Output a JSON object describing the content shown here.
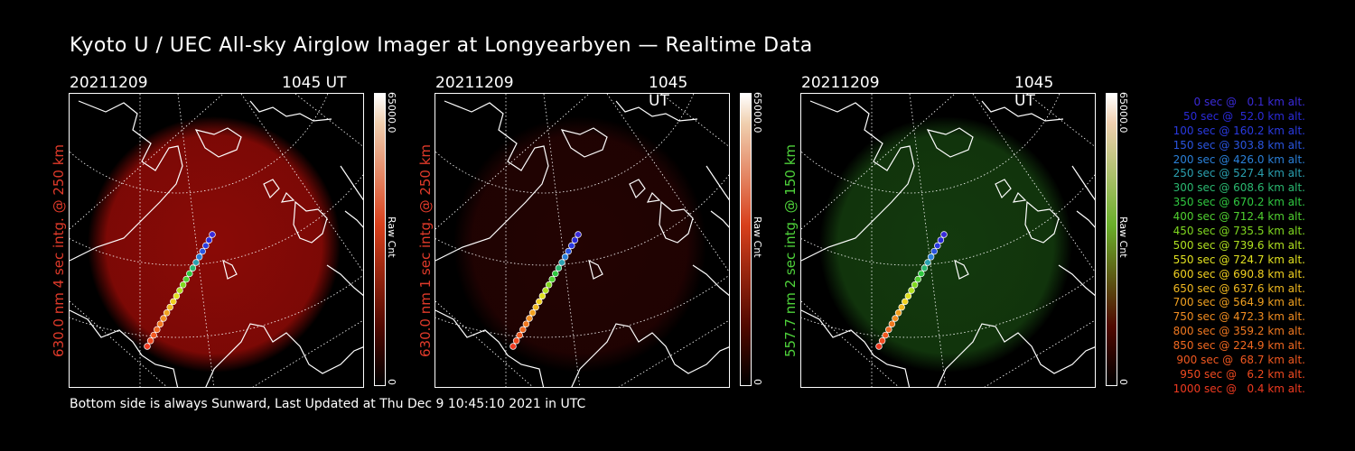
{
  "header": {
    "title": "Kyoto U / UEC All-sky Airglow Imager at Longyearbyen — Realtime Data"
  },
  "panels": [
    {
      "date": "20211209",
      "time": "1045 UT",
      "ylabel": "630.0 nm 4 sec intg. @ 250 km",
      "ylabel_color": "#e03a2a",
      "colorbar_max": "65000.0",
      "colorbar_min": "0",
      "colorbar_label": "Raw Cnt",
      "glow_color": "#8a0a06",
      "glow_strength": 1.0,
      "bar_top": "#ffffff",
      "bar_bottom": "#000000",
      "bar_mid": "#d8401c"
    },
    {
      "date": "20211209",
      "time": "1045 UT",
      "ylabel": "630.0 nm 1 sec intg. @ 250 km",
      "ylabel_color": "#e03a2a",
      "colorbar_max": "65000.0",
      "colorbar_min": "0",
      "colorbar_label": "Raw Cnt",
      "glow_color": "#3a0504",
      "glow_strength": 0.6,
      "bar_top": "#ffffff",
      "bar_bottom": "#000000",
      "bar_mid": "#d8401c"
    },
    {
      "date": "20211209",
      "time": "1045 UT",
      "ylabel": "557.7 nm 2 sec intg. @ 150 km",
      "ylabel_color": "#4ed13a",
      "colorbar_max": "65000.0",
      "colorbar_min": "0",
      "colorbar_label": "Raw Cnt",
      "glow_color": "#15400f",
      "glow_strength": 0.9,
      "bar_top": "#ffffff",
      "bar_bottom": "#000000",
      "bar_mid": "#6ab02a"
    }
  ],
  "trajectory_legend": [
    {
      "text": "0 sec @   0.1 km alt.",
      "color": "#3a2ad8"
    },
    {
      "text": "50 sec @  52.0 km alt.",
      "color": "#2a2ad8"
    },
    {
      "text": "100 sec @ 160.2 km alt.",
      "color": "#2a3ae0"
    },
    {
      "text": "150 sec @ 303.8 km alt.",
      "color": "#2a55e0"
    },
    {
      "text": "200 sec @ 426.0 km alt.",
      "color": "#2a80d8"
    },
    {
      "text": "250 sec @ 527.4 km alt.",
      "color": "#2aa0b0"
    },
    {
      "text": "300 sec @ 608.6 km alt.",
      "color": "#2ab870"
    },
    {
      "text": "350 sec @ 670.2 km alt.",
      "color": "#30c840"
    },
    {
      "text": "400 sec @ 712.4 km alt.",
      "color": "#50d030"
    },
    {
      "text": "450 sec @ 735.5 km alt.",
      "color": "#80d820"
    },
    {
      "text": "500 sec @ 739.6 km alt.",
      "color": "#b0e020"
    },
    {
      "text": "550 sec @ 724.7 km alt.",
      "color": "#e0e020"
    },
    {
      "text": "600 sec @ 690.8 km alt.",
      "color": "#f0d020"
    },
    {
      "text": "650 sec @ 637.6 km alt.",
      "color": "#f0b820"
    },
    {
      "text": "700 sec @ 564.9 km alt.",
      "color": "#f0a020"
    },
    {
      "text": "750 sec @ 472.3 km alt.",
      "color": "#f08c20"
    },
    {
      "text": "800 sec @ 359.2 km alt.",
      "color": "#f07820"
    },
    {
      "text": "850 sec @ 224.9 km alt.",
      "color": "#f06820"
    },
    {
      "text": "900 sec @  68.7 km alt.",
      "color": "#f05820"
    },
    {
      "text": "950 sec @   6.2 km alt.",
      "color": "#f04a20"
    },
    {
      "text": "1000 sec @   0.4 km alt.",
      "color": "#f03a20"
    }
  ],
  "footer": {
    "text": "Bottom side is always Sunward, Last Updated at Thu Dec  9 10:45:10 2021 in UTC"
  }
}
